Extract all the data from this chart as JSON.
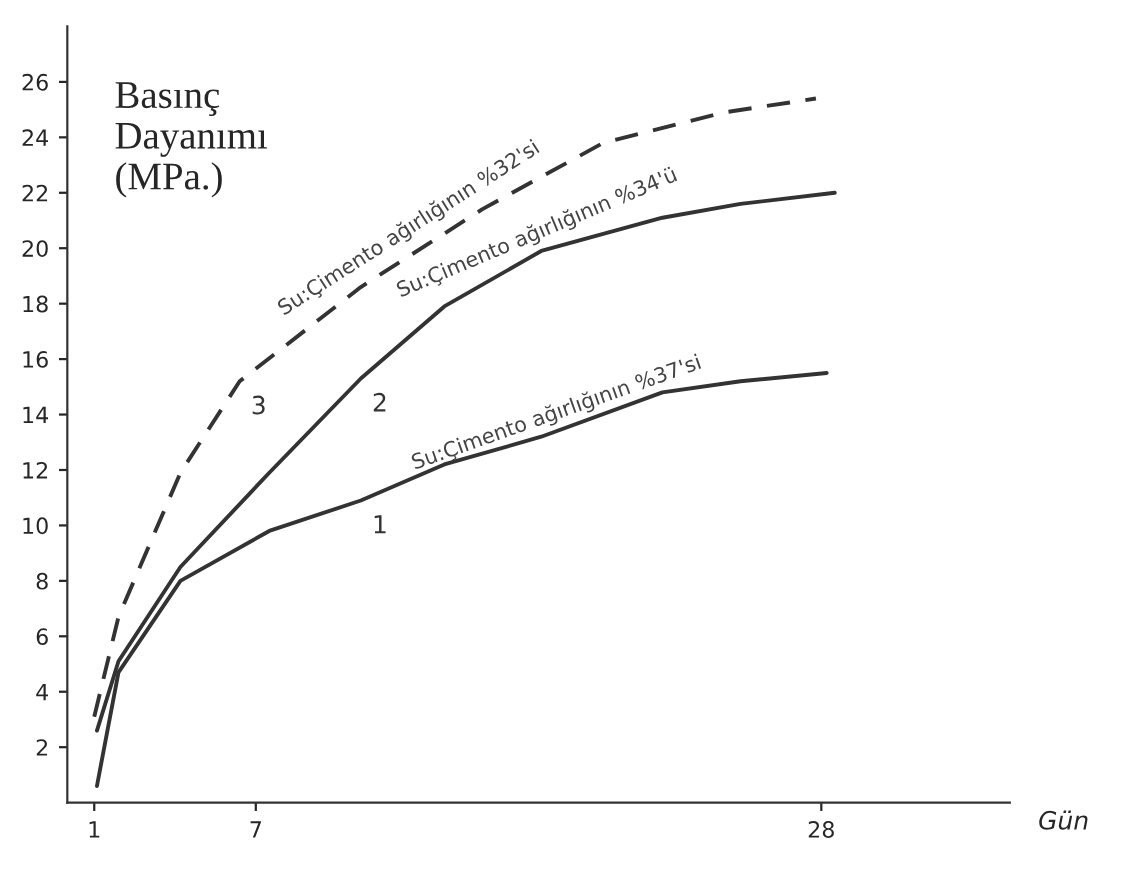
{
  "chart_data": {
    "type": "line",
    "ylabel": "Basınç Dayanımı (MPa.)",
    "xlabel": "Gün",
    "xlim": [
      0,
      35
    ],
    "ylim": [
      0,
      28
    ],
    "xticks": [
      1,
      7,
      28
    ],
    "yticks": [
      2,
      4,
      6,
      8,
      10,
      12,
      14,
      16,
      18,
      20,
      22,
      24,
      26
    ],
    "grid": false,
    "legend": false,
    "marker": "none",
    "series": [
      {
        "name": "1",
        "color": "#333333",
        "line_style": "solid",
        "x": [
          1.1,
          1.9,
          4.2,
          7.5,
          10.9,
          14,
          17.6,
          22.1,
          25,
          28.2
        ],
        "values": [
          0.6,
          4.7,
          8.0,
          9.8,
          10.9,
          12.2,
          13.2,
          14.8,
          15.2,
          15.5
        ]
      },
      {
        "name": "2",
        "color": "#333333",
        "line_style": "solid",
        "x": [
          1.1,
          1.9,
          4.2,
          7.5,
          10.9,
          14,
          17.6,
          22.1,
          25,
          28.5
        ],
        "values": [
          2.6,
          5.1,
          8.5,
          11.9,
          15.3,
          17.9,
          19.9,
          21.1,
          21.6,
          22.0
        ]
      },
      {
        "name": "3",
        "color": "#333333",
        "line_style": "dashed",
        "x": [
          1,
          1.9,
          4.2,
          6.4,
          10.9,
          15.4,
          19.9,
          24.4,
          27.8
        ],
        "values": [
          3.1,
          6.7,
          11.9,
          15.2,
          18.6,
          21.4,
          23.8,
          24.9,
          25.4
        ]
      }
    ],
    "annotations": [
      {
        "text": "Su:Çimento ağırlığının %37'si",
        "x": 18.3,
        "y": 13.4
      },
      {
        "text": "Su:Çimento ağırlığının %34'ü",
        "x": 17.6,
        "y": 19.9
      },
      {
        "text": "Su:Çimento ağırlığının %32'si",
        "x": 12.9,
        "y": 20.1
      }
    ]
  }
}
